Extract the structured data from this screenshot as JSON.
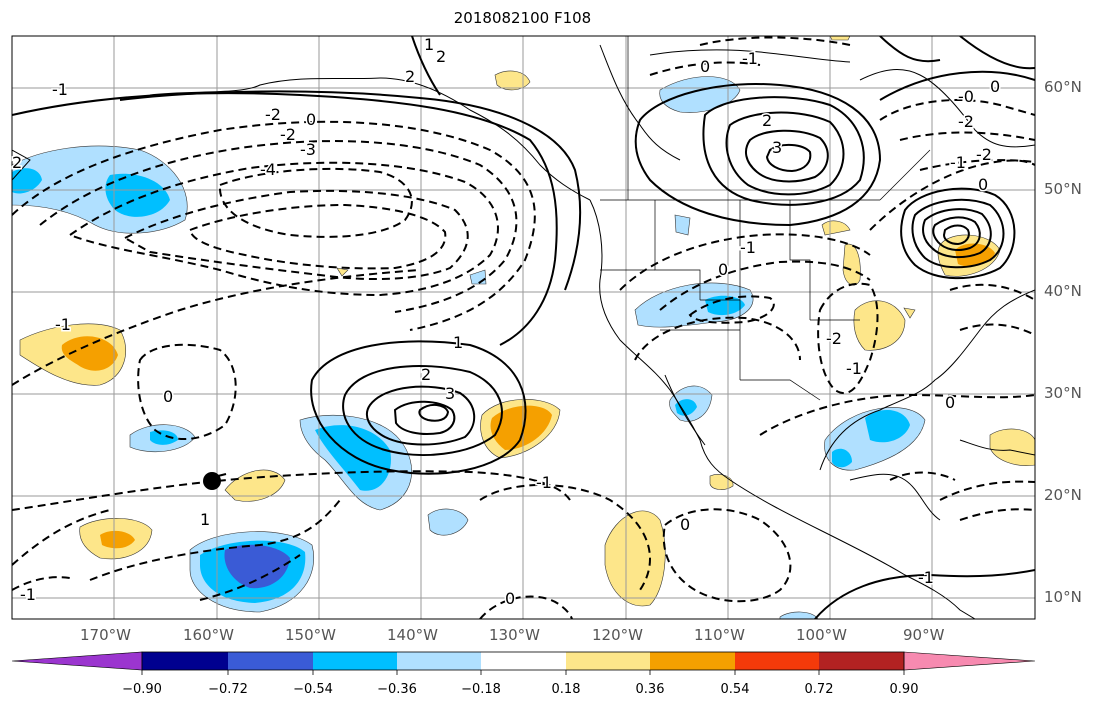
{
  "title": "2018082100 F108",
  "lat_labels": [
    "60°N",
    "50°N",
    "40°N",
    "30°N",
    "20°N",
    "10°N"
  ],
  "lon_labels": [
    "170°W",
    "160°W",
    "150°W",
    "140°W",
    "130°W",
    "120°W",
    "110°W",
    "100°W",
    "90°W"
  ],
  "colorbar": {
    "ticks": [
      "−0.90",
      "−0.72",
      "−0.54",
      "−0.36",
      "−0.18",
      "0.18",
      "0.36",
      "0.54",
      "0.72",
      "0.90"
    ],
    "colors": [
      "#9b35cf",
      "#00008f",
      "#3a5bd6",
      "#00bfff",
      "#b0e0ff",
      "#ffffff",
      "#fde68a",
      "#f5a000",
      "#f53a0a",
      "#b22222",
      "#f78ab0"
    ]
  },
  "contour_labels": [
    {
      "text": "1"
    },
    {
      "text": "2"
    },
    {
      "text": "-1"
    },
    {
      "text": "0"
    },
    {
      "text": "-1"
    },
    {
      "text": "0"
    },
    {
      "text": "2"
    },
    {
      "text": "-2"
    },
    {
      "text": "-3"
    },
    {
      "text": "-4"
    },
    {
      "text": "0"
    },
    {
      "text": "-2"
    },
    {
      "text": "2"
    },
    {
      "text": "3"
    },
    {
      "text": "-2"
    },
    {
      "text": "-0"
    },
    {
      "text": "-2"
    },
    {
      "text": "-1"
    },
    {
      "text": "0"
    },
    {
      "text": "2"
    },
    {
      "text": "-1"
    },
    {
      "text": "0"
    },
    {
      "text": "-1"
    },
    {
      "text": "-2"
    },
    {
      "text": "-1"
    },
    {
      "text": "0"
    },
    {
      "text": "1"
    },
    {
      "text": "2"
    },
    {
      "text": "3"
    },
    {
      "text": "1"
    },
    {
      "text": "-1"
    },
    {
      "text": "0"
    },
    {
      "text": "-1"
    },
    {
      "text": "0"
    },
    {
      "text": "-1"
    },
    {
      "text": "0"
    }
  ]
}
